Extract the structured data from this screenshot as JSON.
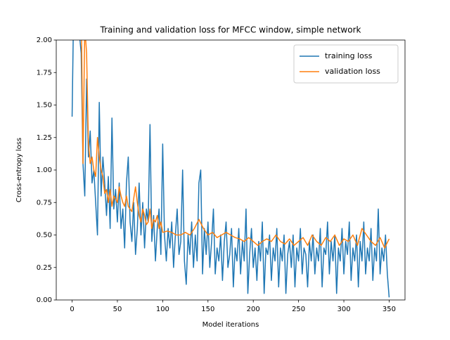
{
  "chart_data": {
    "type": "line",
    "title": "Training and validation loss for MFCC window, simple network",
    "xlabel": "Model iterations",
    "ylabel": "Cross-entropy loss",
    "xlim": [
      -17.5,
      367.5
    ],
    "ylim": [
      0,
      2
    ],
    "xticks": [
      0,
      50,
      100,
      150,
      200,
      250,
      300,
      350
    ],
    "yticks": [
      {
        "value": 0,
        "label": "0.00"
      },
      {
        "value": 0.25,
        "label": "0.25"
      },
      {
        "value": 0.5,
        "label": "0.50"
      },
      {
        "value": 0.75,
        "label": "0.75"
      },
      {
        "value": 1,
        "label": "1.00"
      },
      {
        "value": 1.25,
        "label": "1.25"
      },
      {
        "value": 1.5,
        "label": "1.50"
      },
      {
        "value": 1.75,
        "label": "1.75"
      },
      {
        "value": 2,
        "label": "2.00"
      }
    ],
    "legend": "upper right",
    "series": [
      {
        "name": "training loss",
        "color": "#1f77b4",
        "x": [
          0,
          2,
          6,
          10,
          12,
          14,
          16,
          18,
          20,
          22,
          24,
          26,
          28,
          30,
          32,
          34,
          36,
          38,
          40,
          42,
          44,
          46,
          48,
          50,
          52,
          54,
          56,
          58,
          60,
          62,
          64,
          66,
          68,
          70,
          72,
          74,
          76,
          78,
          80,
          82,
          84,
          86,
          88,
          90,
          92,
          94,
          96,
          98,
          100,
          102,
          104,
          106,
          108,
          110,
          112,
          114,
          116,
          118,
          120,
          122,
          124,
          126,
          128,
          130,
          132,
          134,
          136,
          138,
          140,
          142,
          144,
          146,
          148,
          150,
          152,
          154,
          156,
          158,
          160,
          162,
          164,
          166,
          168,
          170,
          172,
          174,
          176,
          178,
          180,
          182,
          184,
          186,
          188,
          190,
          192,
          194,
          196,
          198,
          200,
          202,
          204,
          206,
          208,
          210,
          212,
          214,
          216,
          218,
          220,
          222,
          224,
          226,
          228,
          230,
          232,
          234,
          236,
          238,
          240,
          242,
          244,
          246,
          248,
          250,
          252,
          254,
          256,
          258,
          260,
          262,
          264,
          266,
          268,
          270,
          272,
          274,
          276,
          278,
          280,
          282,
          284,
          286,
          288,
          290,
          292,
          294,
          296,
          298,
          300,
          302,
          304,
          306,
          308,
          310,
          312,
          314,
          316,
          318,
          320,
          322,
          324,
          326,
          328,
          330,
          332,
          334,
          336,
          338,
          340,
          342,
          344,
          346,
          348,
          350
        ],
        "values": [
          1.41,
          2.4,
          2.2,
          1.9,
          1.05,
          0.8,
          1.7,
          1.1,
          1.3,
          0.9,
          1.0,
          0.75,
          0.5,
          1.52,
          0.8,
          1.1,
          0.9,
          0.65,
          0.95,
          0.55,
          1.4,
          0.7,
          0.85,
          0.6,
          0.9,
          0.55,
          0.7,
          0.4,
          0.9,
          1.1,
          0.6,
          0.45,
          0.75,
          0.35,
          0.55,
          0.9,
          0.5,
          0.75,
          0.4,
          0.7,
          0.6,
          1.35,
          0.45,
          0.65,
          0.3,
          0.55,
          0.7,
          0.35,
          1.2,
          0.5,
          0.3,
          0.55,
          0.4,
          0.6,
          0.25,
          0.5,
          0.7,
          0.35,
          0.45,
          1.0,
          0.3,
          0.12,
          0.5,
          0.35,
          0.6,
          0.25,
          0.5,
          0.3,
          0.9,
          1.0,
          0.2,
          0.55,
          0.35,
          0.6,
          0.25,
          0.45,
          0.7,
          0.2,
          0.4,
          0.3,
          0.5,
          0.15,
          0.45,
          0.6,
          0.25,
          0.35,
          0.55,
          0.1,
          0.4,
          0.3,
          0.55,
          0.2,
          0.45,
          0.3,
          0.7,
          0.05,
          0.35,
          0.55,
          0.25,
          0.4,
          0.15,
          0.45,
          0.3,
          0.6,
          0.05,
          0.4,
          0.35,
          0.5,
          0.15,
          0.4,
          0.3,
          0.55,
          0.1,
          0.4,
          0.3,
          0.5,
          0.05,
          0.35,
          0.45,
          0.25,
          0.5,
          0.1,
          0.4,
          0.3,
          0.55,
          0.2,
          0.4,
          0.35,
          0.1,
          0.45,
          0.3,
          0.5,
          0.2,
          0.4,
          0.3,
          0.55,
          0.1,
          0.4,
          0.35,
          0.6,
          0.2,
          0.45,
          0.3,
          0.5,
          0.05,
          0.4,
          0.3,
          0.55,
          0.2,
          0.45,
          0.35,
          0.6,
          0.15,
          0.4,
          0.3,
          0.5,
          0.1,
          0.45,
          0.3,
          0.6,
          0.2,
          0.4,
          0.3,
          0.55,
          0.15,
          0.4,
          0.3,
          0.7,
          0.2,
          0.4,
          0.3,
          0.5,
          0.2,
          0.02
        ]
      },
      {
        "name": "validation loss",
        "color": "#ff7f0e",
        "x": [
          10,
          12,
          14,
          16,
          18,
          20,
          22,
          24,
          26,
          28,
          30,
          32,
          34,
          36,
          38,
          40,
          42,
          44,
          46,
          48,
          50,
          52,
          54,
          56,
          58,
          60,
          62,
          64,
          66,
          68,
          70,
          72,
          74,
          76,
          78,
          80,
          82,
          84,
          86,
          88,
          90,
          92,
          94,
          96,
          98,
          100,
          105,
          110,
          115,
          120,
          125,
          130,
          135,
          140,
          145,
          150,
          155,
          160,
          165,
          170,
          175,
          180,
          185,
          190,
          195,
          200,
          205,
          210,
          215,
          220,
          225,
          230,
          235,
          240,
          245,
          250,
          255,
          260,
          265,
          270,
          275,
          280,
          285,
          290,
          295,
          300,
          305,
          310,
          315,
          320,
          325,
          330,
          335,
          340,
          345,
          350
        ],
        "values": [
          2.3,
          1.05,
          2.1,
          1.9,
          1.2,
          1.05,
          1.1,
          1.0,
          0.95,
          1.25,
          1.1,
          1.0,
          0.95,
          0.82,
          0.85,
          0.75,
          0.85,
          0.72,
          0.8,
          0.78,
          0.75,
          0.87,
          0.8,
          0.75,
          0.72,
          0.8,
          0.72,
          0.7,
          0.68,
          0.78,
          0.87,
          0.75,
          0.65,
          0.6,
          0.7,
          0.65,
          0.58,
          0.6,
          0.7,
          0.55,
          0.62,
          0.6,
          0.65,
          0.55,
          0.6,
          0.52,
          0.53,
          0.52,
          0.5,
          0.5,
          0.52,
          0.5,
          0.55,
          0.62,
          0.55,
          0.5,
          0.52,
          0.48,
          0.5,
          0.52,
          0.5,
          0.48,
          0.47,
          0.45,
          0.48,
          0.45,
          0.42,
          0.45,
          0.47,
          0.45,
          0.5,
          0.45,
          0.43,
          0.47,
          0.42,
          0.45,
          0.48,
          0.42,
          0.5,
          0.45,
          0.42,
          0.48,
          0.45,
          0.5,
          0.42,
          0.47,
          0.45,
          0.5,
          0.42,
          0.55,
          0.5,
          0.45,
          0.42,
          0.48,
          0.4,
          0.47
        ]
      }
    ]
  }
}
